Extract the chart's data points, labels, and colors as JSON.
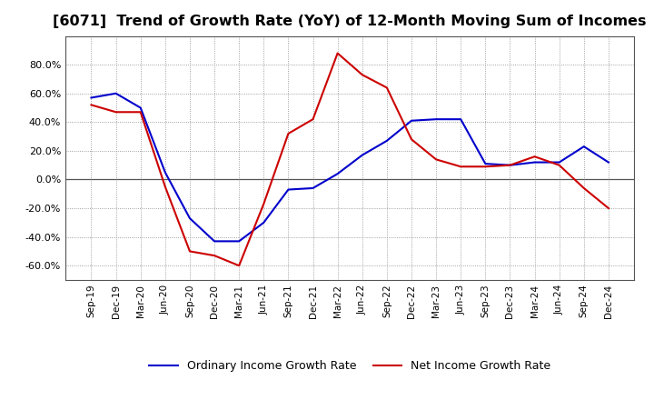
{
  "title": "[6071]  Trend of Growth Rate (YoY) of 12-Month Moving Sum of Incomes",
  "title_fontsize": 11.5,
  "x_labels": [
    "Sep-19",
    "Dec-19",
    "Mar-20",
    "Jun-20",
    "Sep-20",
    "Dec-20",
    "Mar-21",
    "Jun-21",
    "Sep-21",
    "Dec-21",
    "Mar-22",
    "Jun-22",
    "Sep-22",
    "Dec-22",
    "Mar-23",
    "Jun-23",
    "Sep-23",
    "Dec-23",
    "Mar-24",
    "Jun-24",
    "Sep-24",
    "Dec-24"
  ],
  "ordinary_income": [
    0.57,
    0.6,
    0.5,
    0.05,
    -0.27,
    -0.43,
    -0.43,
    -0.3,
    -0.07,
    -0.06,
    0.04,
    0.17,
    0.27,
    0.41,
    0.42,
    0.42,
    0.11,
    0.1,
    0.12,
    0.12,
    0.23,
    0.12
  ],
  "net_income": [
    0.52,
    0.47,
    0.47,
    -0.05,
    -0.5,
    -0.53,
    -0.6,
    -0.17,
    0.32,
    0.42,
    0.88,
    0.73,
    0.64,
    0.28,
    0.14,
    0.09,
    0.09,
    0.1,
    0.16,
    0.1,
    -0.06,
    -0.2
  ],
  "ordinary_color": "#0000cc",
  "net_color": "#cc0000",
  "ylim_min": -0.7,
  "ylim_max": 1.0,
  "ytick_vals": [
    -0.6,
    -0.4,
    -0.2,
    0.0,
    0.2,
    0.4,
    0.6,
    0.8
  ],
  "background_color": "#ffffff",
  "plot_bg_color": "#e8e8f0",
  "grid_color": "#888888",
  "zero_line_color": "#555555",
  "legend_labels": [
    "Ordinary Income Growth Rate",
    "Net Income Growth Rate"
  ]
}
